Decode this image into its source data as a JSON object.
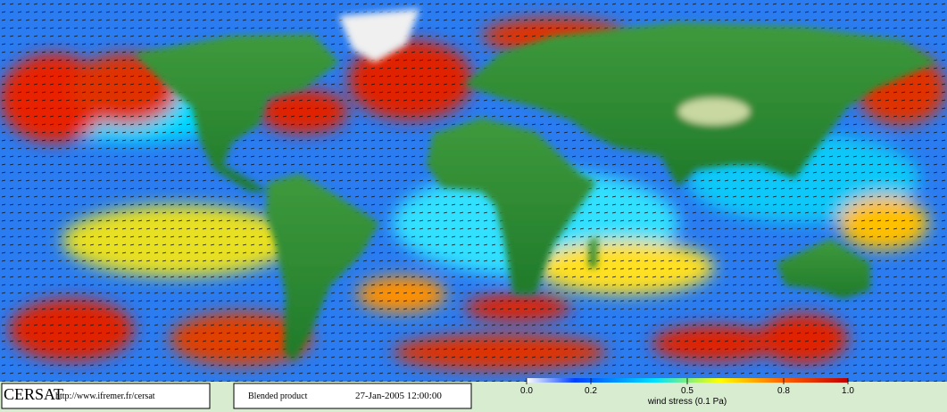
{
  "footer": {
    "logo": "CERSAT",
    "url": "http://www.ifremer.fr/cersat",
    "product": "Blended product",
    "datetime": "27-Jan-2005 12:00:00"
  },
  "colorbar": {
    "label": "wind stress (0.1 Pa)",
    "range": [
      0,
      1
    ],
    "ticks": [
      {
        "value": 0,
        "label": "0.0"
      },
      0.2,
      0.5,
      0.8,
      {
        "value": 1,
        "label": "1.0"
      }
    ]
  }
}
